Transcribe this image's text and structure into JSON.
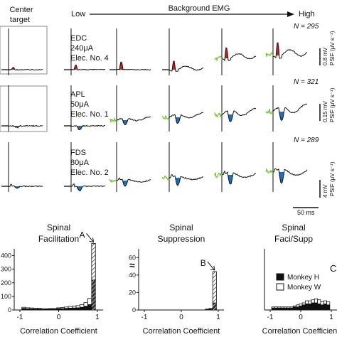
{
  "header": {
    "center_target": "Center\ntarget",
    "low": "Low",
    "background_emg": "Background EMG",
    "high": "High"
  },
  "rows": [
    {
      "muscle": "EDC",
      "current": "240μA",
      "electrode": "Elec. No. 4",
      "n_label": "N = 295",
      "unit_label": "PSIF (μV s⁻¹)",
      "scale_value": "0.8 mV",
      "effect": "facilitation",
      "color": "#e0161b"
    },
    {
      "muscle": "APL",
      "current": "50μA",
      "electrode": "Elec. No. 1",
      "n_label": "N = 321",
      "unit_label": "PSIF (μV s⁻¹)",
      "scale_value": "0.15 mV",
      "effect": "suppression",
      "color": "#1f6fc1"
    },
    {
      "muscle": "FDS",
      "current": "80μA",
      "electrode": "Elec. No. 2",
      "n_label": "N = 289",
      "unit_label": "PSIF (μV s⁻¹)",
      "scale_value": "4 mV",
      "effect": "faci/supp",
      "color": "#e0161b"
    }
  ],
  "baseline_color": "#7ac142",
  "time_scale": "50 ms",
  "histograms": [
    {
      "title": "Spinal\nFacilitation",
      "marker": "A",
      "yticks": [
        "0",
        "100",
        "200",
        "300",
        "400"
      ],
      "xticks": [
        "-1",
        "0",
        "1"
      ]
    },
    {
      "title": "Spinal\nSuppression",
      "marker": "B",
      "yticks": [
        "0",
        "20",
        "40",
        "60"
      ],
      "xticks": [
        "-1",
        "0",
        "1"
      ]
    },
    {
      "title": "Spinal\nFaci/Supp",
      "marker": "C",
      "yticks": [],
      "xticks": [
        "-1",
        "0",
        "1"
      ]
    }
  ],
  "xlabel": "Correlation Coefficient",
  "legend": [
    {
      "label": "Monkey H",
      "fill": "#111111"
    },
    {
      "label": "Monkey W",
      "fill": "#ffffff"
    }
  ],
  "chart_data": [
    {
      "type": "bar",
      "title": "Spinal Facilitation",
      "xlabel": "Correlation Coefficient",
      "x": [
        -0.9,
        -0.8,
        -0.7,
        -0.6,
        -0.5,
        -0.4,
        -0.3,
        -0.2,
        -0.1,
        0.0,
        0.1,
        0.2,
        0.3,
        0.4,
        0.5,
        0.6,
        0.7,
        0.8,
        0.9
      ],
      "series": [
        {
          "name": "Monkey H",
          "values": [
            12,
            8,
            8,
            7,
            7,
            5,
            5,
            6,
            6,
            10,
            10,
            12,
            14,
            15,
            16,
            20,
            28,
            40,
            220
          ]
        },
        {
          "name": "Monkey W",
          "values": [
            8,
            8,
            7,
            6,
            6,
            4,
            4,
            5,
            5,
            6,
            8,
            10,
            12,
            14,
            16,
            20,
            26,
            45,
            270
          ]
        }
      ],
      "ylim": [
        0,
        450
      ],
      "xlim": [
        -1,
        1
      ]
    },
    {
      "type": "bar",
      "title": "Spinal Suppression",
      "xlabel": "Correlation Coefficient",
      "x": [
        -0.9,
        -0.8,
        -0.7,
        -0.6,
        -0.5,
        -0.4,
        -0.3,
        -0.2,
        -0.1,
        0.0,
        0.1,
        0.2,
        0.3,
        0.4,
        0.5,
        0.6,
        0.7,
        0.8,
        0.9
      ],
      "series": [
        {
          "name": "Monkey H",
          "values": [
            0,
            0,
            0,
            0,
            0,
            0,
            0,
            0,
            0,
            0,
            0,
            0,
            0,
            0,
            0,
            0,
            0.5,
            1,
            8
          ]
        },
        {
          "name": "Monkey W",
          "values": [
            0,
            0,
            0,
            0,
            0,
            0,
            0,
            0,
            0,
            0,
            0,
            0,
            0,
            0,
            0,
            0,
            0.5,
            1,
            36
          ]
        }
      ],
      "ylim": [
        0,
        70
      ],
      "xlim": [
        -1,
        1
      ]
    },
    {
      "type": "bar",
      "title": "Spinal Faci/Supp",
      "xlabel": "Correlation Coefficient",
      "x": [
        -0.9,
        -0.8,
        -0.7,
        -0.6,
        -0.5,
        -0.4,
        -0.3,
        -0.2,
        -0.1,
        0.0,
        0.1,
        0.2,
        0.3,
        0.4,
        0.5,
        0.6,
        0.7,
        0.8,
        0.9
      ],
      "series": [
        {
          "name": "Monkey H",
          "values": [
            2,
            2,
            2,
            2,
            2,
            2,
            2,
            3,
            3,
            4,
            5,
            6,
            6,
            7,
            7,
            6,
            5,
            6,
            5
          ]
        },
        {
          "name": "Monkey W",
          "values": [
            1,
            1,
            1,
            1,
            1,
            1,
            1,
            1,
            2,
            2,
            2,
            3,
            3,
            3,
            4,
            4,
            3,
            3,
            3
          ]
        }
      ],
      "ylim": [
        0,
        60
      ],
      "xlim": [
        -1,
        1
      ]
    }
  ]
}
